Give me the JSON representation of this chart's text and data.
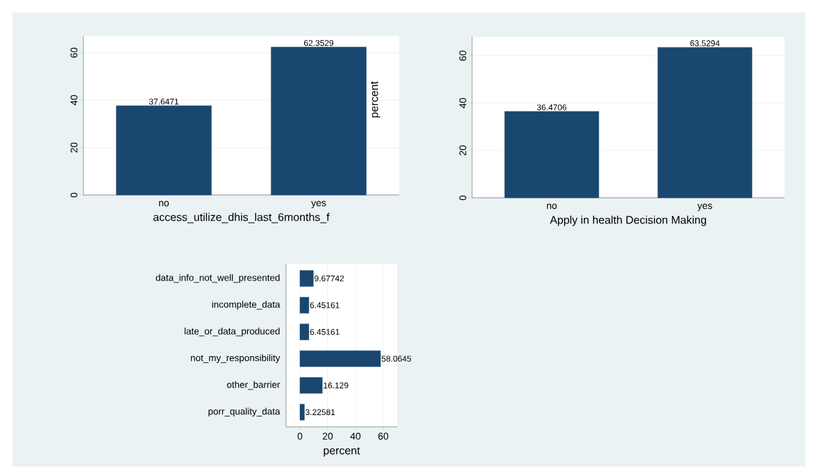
{
  "chart_data": [
    {
      "type": "bar",
      "categories": [
        "no",
        "yes"
      ],
      "values": [
        37.6471,
        62.3529
      ],
      "value_labels": [
        "37.6471",
        "62.3529"
      ],
      "color": "#1a476f",
      "xlabel": "access_utilize_dhis_last_6months_f",
      "ylabel": "percent",
      "ylim": [
        0,
        67
      ],
      "yticks": [
        0,
        20,
        40,
        60
      ],
      "grid": "y"
    },
    {
      "type": "bar",
      "categories": [
        "no",
        "yes"
      ],
      "values": [
        36.4706,
        63.5294
      ],
      "value_labels": [
        "36.4706",
        "63.5294"
      ],
      "color": "#1a476f",
      "xlabel": "Apply in health Decision Making",
      "ylim": [
        0,
        68
      ],
      "yticks": [
        0,
        20,
        40,
        60
      ],
      "grid": "y"
    },
    {
      "type": "bar",
      "orientation": "horizontal",
      "categories": [
        "data_info_not_well_presented",
        "incomplete_data",
        "late_or_data_produced",
        "not_my_responsibility",
        "other_barrier",
        "porr_quality_data"
      ],
      "values": [
        9.67742,
        6.45161,
        6.45161,
        58.0645,
        16.129,
        3.22581
      ],
      "value_labels": [
        "9.67742",
        "6.45161",
        "6.45161",
        "58.0645",
        "16.129",
        "3.22581"
      ],
      "color": "#1a476f",
      "xlabel": "percent",
      "xlim": [
        -10,
        70
      ],
      "xticks": [
        0,
        20,
        40,
        60
      ],
      "grid": "x"
    }
  ]
}
